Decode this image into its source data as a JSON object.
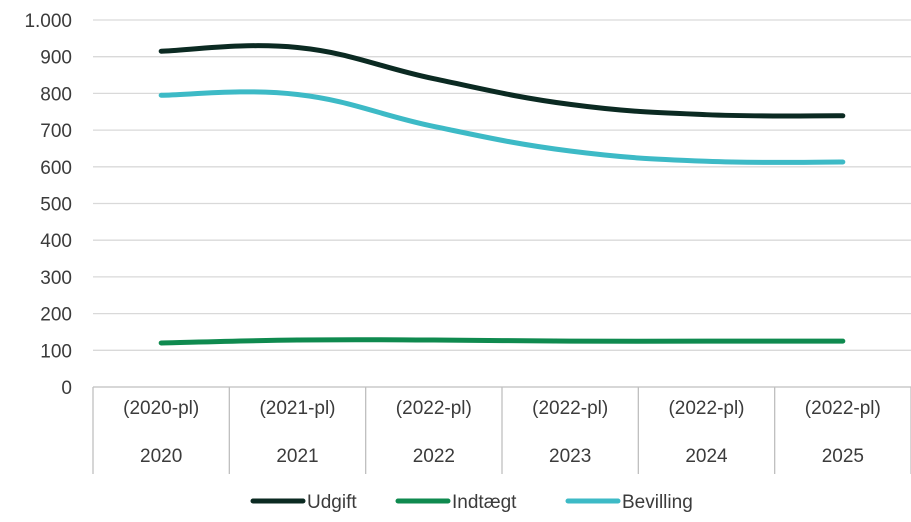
{
  "chart_data": {
    "type": "line",
    "title": "",
    "xlabel": "",
    "ylabel": "",
    "ylim": [
      0,
      1000
    ],
    "yticks": [
      0,
      100,
      200,
      300,
      400,
      500,
      600,
      700,
      800,
      900,
      1000
    ],
    "ytick_labels": [
      "0",
      "100",
      "200",
      "300",
      "400",
      "500",
      "600",
      "700",
      "800",
      "900",
      "1.000"
    ],
    "grid": true,
    "legend_position": "bottom",
    "categories": [
      {
        "sub": "(2020-pl)",
        "year": "2020"
      },
      {
        "sub": "(2021-pl)",
        "year": "2021"
      },
      {
        "sub": "(2022-pl)",
        "year": "2022"
      },
      {
        "sub": "(2022-pl)",
        "year": "2023"
      },
      {
        "sub": "(2022-pl)",
        "year": "2024"
      },
      {
        "sub": "(2022-pl)",
        "year": "2025"
      }
    ],
    "series": [
      {
        "name": "Udgift",
        "color": "#0b2a22",
        "values": [
          915,
          925,
          840,
          770,
          742,
          739
        ]
      },
      {
        "name": "Indtægt",
        "color": "#0f8a4f",
        "values": [
          120,
          128,
          128,
          125,
          125,
          125
        ]
      },
      {
        "name": "Bevilling",
        "color": "#3dbac6",
        "values": [
          795,
          797,
          710,
          643,
          615,
          613
        ]
      }
    ]
  }
}
